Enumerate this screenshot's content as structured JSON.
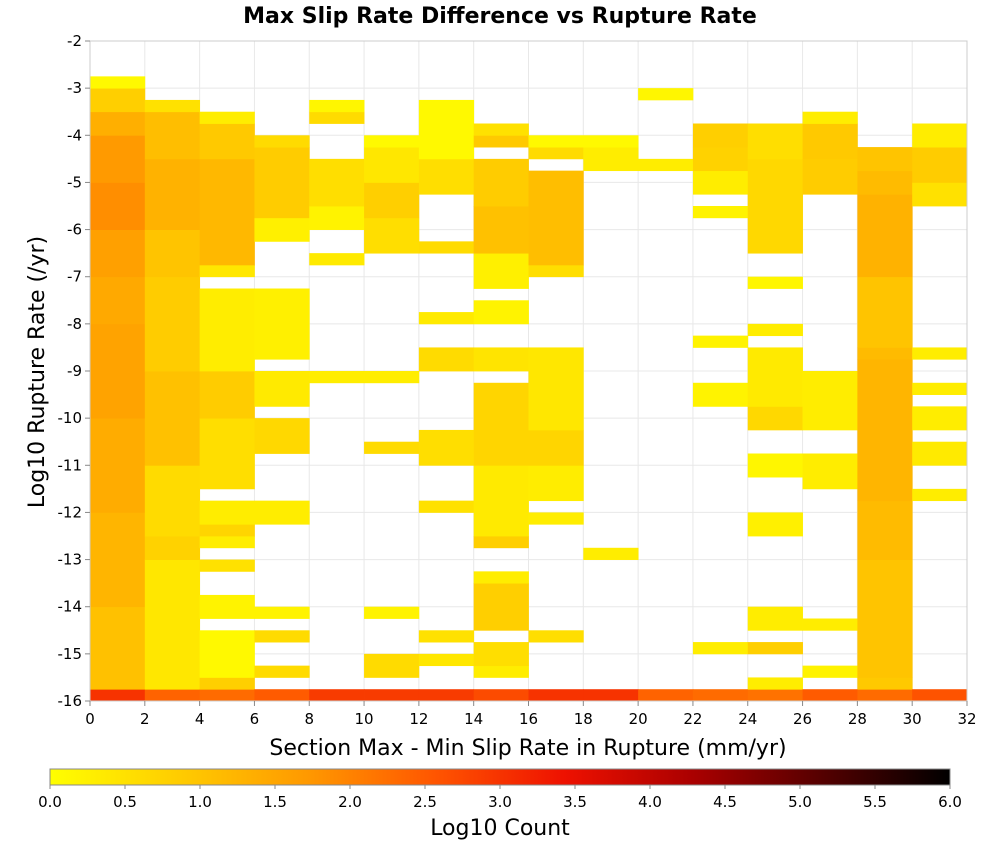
{
  "chart_data": {
    "type": "heatmap",
    "title": "Max Slip Rate Difference vs Rupture Rate",
    "xlabel": "Section Max - Min Slip Rate in Rupture (mm/yr)",
    "ylabel": "Log10 Rupture Rate (/yr)",
    "x_range": [
      0,
      32
    ],
    "y_range": [
      -16,
      -2
    ],
    "x_ticks": [
      0,
      2,
      4,
      6,
      8,
      10,
      12,
      14,
      16,
      18,
      20,
      22,
      24,
      26,
      28,
      30,
      32
    ],
    "y_ticks": [
      -16,
      -15,
      -14,
      -13,
      -12,
      -11,
      -10,
      -9,
      -8,
      -7,
      -6,
      -5,
      -4,
      -3,
      -2
    ],
    "x_bin_width": 2,
    "y_bin_width": 0.25,
    "grid": true,
    "colorbar": {
      "label": "Log10 Count",
      "range": [
        0,
        6
      ],
      "ticks": [
        "0.0",
        "0.5",
        "1.0",
        "1.5",
        "2.0",
        "2.5",
        "3.0",
        "3.5",
        "4.0",
        "4.5",
        "5.0",
        "5.5",
        "6.0"
      ],
      "colors": [
        "#FFFF00",
        "#FFCC00",
        "#FF9900",
        "#FF5500",
        "#EE1100",
        "#AA0000",
        "#550000",
        "#000000"
      ],
      "placement": "bottom"
    },
    "columns": [
      {
        "x_start": 0,
        "cells": [
          [
            -16,
            -15.75,
            3.0
          ],
          [
            -15.75,
            -14,
            1.05
          ],
          [
            -14,
            -12,
            1.25
          ],
          [
            -12,
            -10,
            1.4
          ],
          [
            -10,
            -8,
            1.55
          ],
          [
            -8,
            -7,
            1.45
          ],
          [
            -7,
            -6,
            1.6
          ],
          [
            -6,
            -5,
            1.85
          ],
          [
            -5,
            -4,
            1.7
          ],
          [
            -4,
            -3.5,
            1.35
          ],
          [
            -3.5,
            -3,
            0.8
          ],
          [
            -3,
            -2.75,
            0.1
          ]
        ]
      },
      {
        "x_start": 2,
        "cells": [
          [
            -16,
            -15.75,
            2.4
          ],
          [
            -15.75,
            -13,
            0.4
          ],
          [
            -13,
            -12.5,
            0.75
          ],
          [
            -12.5,
            -11,
            0.6
          ],
          [
            -11,
            -9,
            1.05
          ],
          [
            -9,
            -7,
            0.85
          ],
          [
            -7,
            -6,
            1.0
          ],
          [
            -6,
            -4.5,
            1.3
          ],
          [
            -4.5,
            -3.5,
            1.1
          ],
          [
            -3.5,
            -3.25,
            0.5
          ]
        ]
      },
      {
        "x_start": 4,
        "cells": [
          [
            -16,
            -15.75,
            2.3
          ],
          [
            -15.75,
            -15.5,
            0.8
          ],
          [
            -15.5,
            -14.5,
            0.1
          ],
          [
            -14.25,
            -13.75,
            0.2
          ],
          [
            -13.25,
            -13,
            0.5
          ],
          [
            -12.75,
            -12.5,
            0.3
          ],
          [
            -12.5,
            -12.25,
            0.7
          ],
          [
            -12.25,
            -11.75,
            0.3
          ],
          [
            -11.5,
            -10,
            0.55
          ],
          [
            -10,
            -9,
            0.85
          ],
          [
            -9,
            -7.25,
            0.3
          ],
          [
            -7,
            -6.75,
            0.4
          ],
          [
            -6.75,
            -4.5,
            1.2
          ],
          [
            -4.5,
            -3.75,
            0.9
          ],
          [
            -3.75,
            -3.5,
            0.3
          ]
        ]
      },
      {
        "x_start": 6,
        "cells": [
          [
            -16,
            -15.75,
            2.5
          ],
          [
            -15.5,
            -15.25,
            0.6
          ],
          [
            -14.75,
            -14.5,
            0.6
          ],
          [
            -14.25,
            -14,
            0.2
          ],
          [
            -12.25,
            -11.75,
            0.3
          ],
          [
            -10.75,
            -10,
            0.65
          ],
          [
            -9.75,
            -9,
            0.35
          ],
          [
            -8.75,
            -7.25,
            0.25
          ],
          [
            -6.25,
            -5.75,
            0.25
          ],
          [
            -5.75,
            -4.25,
            0.85
          ],
          [
            -4.25,
            -4,
            0.6
          ]
        ]
      },
      {
        "x_start": 8,
        "cells": [
          [
            -16,
            -15.75,
            2.9
          ],
          [
            -9.25,
            -9,
            0.3
          ],
          [
            -6.75,
            -6.5,
            0.35
          ],
          [
            -6,
            -5.5,
            0.2
          ],
          [
            -5.5,
            -4.5,
            0.55
          ],
          [
            -3.75,
            -3.5,
            0.6
          ],
          [
            -3.5,
            -3.25,
            0.15
          ]
        ]
      },
      {
        "x_start": 10,
        "cells": [
          [
            -16,
            -15.75,
            2.9
          ],
          [
            -15.5,
            -15,
            0.6
          ],
          [
            -14.25,
            -14,
            0.2
          ],
          [
            -10.75,
            -10.5,
            0.6
          ],
          [
            -9.25,
            -9,
            0.3
          ],
          [
            -6.5,
            -5.75,
            0.55
          ],
          [
            -5.75,
            -5,
            0.8
          ],
          [
            -5,
            -4.25,
            0.4
          ],
          [
            -4.25,
            -4,
            0.1
          ]
        ]
      },
      {
        "x_start": 12,
        "cells": [
          [
            -16,
            -15.75,
            2.9
          ],
          [
            -15.25,
            -15,
            0.4
          ],
          [
            -14.75,
            -14.5,
            0.5
          ],
          [
            -12,
            -11.75,
            0.5
          ],
          [
            -11,
            -10.25,
            0.55
          ],
          [
            -9,
            -8.5,
            0.6
          ],
          [
            -8,
            -7.75,
            0.35
          ],
          [
            -6.5,
            -6.25,
            0.6
          ],
          [
            -5.25,
            -4.5,
            0.55
          ],
          [
            -4.5,
            -3.25,
            0.1
          ]
        ]
      },
      {
        "x_start": 14,
        "cells": [
          [
            -16,
            -15.75,
            2.7
          ],
          [
            -15.5,
            -15.25,
            0.3
          ],
          [
            -15.25,
            -14.75,
            0.55
          ],
          [
            -14.5,
            -13.5,
            0.8
          ],
          [
            -13.5,
            -13.25,
            0.3
          ],
          [
            -12.75,
            -12.5,
            0.8
          ],
          [
            -12.5,
            -11,
            0.35
          ],
          [
            -11,
            -9.25,
            0.7
          ],
          [
            -9,
            -8.5,
            0.45
          ],
          [
            -8,
            -7.5,
            0.2
          ],
          [
            -7.25,
            -6.5,
            0.25
          ],
          [
            -6.5,
            -5.5,
            1.05
          ],
          [
            -5.5,
            -4.5,
            0.85
          ],
          [
            -4.25,
            -4,
            0.9
          ],
          [
            -4,
            -3.75,
            0.5
          ]
        ]
      },
      {
        "x_start": 16,
        "cells": [
          [
            -16,
            -15.75,
            3.0
          ],
          [
            -14.75,
            -14.5,
            0.55
          ],
          [
            -12.25,
            -12,
            0.3
          ],
          [
            -11.75,
            -11,
            0.3
          ],
          [
            -11,
            -10.25,
            0.7
          ],
          [
            -10.25,
            -8.5,
            0.4
          ],
          [
            -7,
            -6.75,
            0.55
          ],
          [
            -6.75,
            -4.75,
            1.1
          ],
          [
            -4.5,
            -4.25,
            0.6
          ],
          [
            -4.25,
            -4,
            0.1
          ]
        ]
      },
      {
        "x_start": 18,
        "cells": [
          [
            -16,
            -15.75,
            3.0
          ],
          [
            -13,
            -12.75,
            0.3
          ],
          [
            -4.75,
            -4.25,
            0.3
          ],
          [
            -4.25,
            -4,
            0.1
          ]
        ]
      },
      {
        "x_start": 20,
        "cells": [
          [
            -16,
            -15.75,
            2.4
          ],
          [
            -4.75,
            -4.5,
            0.3
          ],
          [
            -3.25,
            -3,
            0.15
          ]
        ]
      },
      {
        "x_start": 22,
        "cells": [
          [
            -16,
            -15.75,
            2.3
          ],
          [
            -15,
            -14.75,
            0.3
          ],
          [
            -9.75,
            -9.25,
            0.2
          ],
          [
            -8.5,
            -8.25,
            0.2
          ],
          [
            -5.75,
            -5.5,
            0.2
          ],
          [
            -5.25,
            -4.75,
            0.3
          ],
          [
            -4.75,
            -4.25,
            0.75
          ],
          [
            -4.25,
            -3.75,
            0.8
          ]
        ]
      },
      {
        "x_start": 24,
        "cells": [
          [
            -16,
            -15.75,
            2.2
          ],
          [
            -15.75,
            -15.5,
            0.3
          ],
          [
            -15,
            -14.75,
            0.8
          ],
          [
            -14.5,
            -14,
            0.3
          ],
          [
            -12.5,
            -12,
            0.25
          ],
          [
            -11.25,
            -10.75,
            0.15
          ],
          [
            -10.25,
            -9.75,
            0.65
          ],
          [
            -9.75,
            -8.5,
            0.35
          ],
          [
            -8.25,
            -8,
            0.3
          ],
          [
            -7.25,
            -7,
            0.15
          ],
          [
            -6.5,
            -4.5,
            0.65
          ],
          [
            -4.5,
            -3.75,
            0.55
          ]
        ]
      },
      {
        "x_start": 26,
        "cells": [
          [
            -16,
            -15.75,
            2.5
          ],
          [
            -15.5,
            -15.25,
            0.2
          ],
          [
            -14.5,
            -14.25,
            0.3
          ],
          [
            -11.5,
            -10.75,
            0.3
          ],
          [
            -10.25,
            -9,
            0.3
          ],
          [
            -5.25,
            -4.5,
            0.85
          ],
          [
            -4.5,
            -3.75,
            0.9
          ],
          [
            -3.75,
            -3.5,
            0.3
          ]
        ]
      },
      {
        "x_start": 28,
        "cells": [
          [
            -16,
            -15.75,
            2.3
          ],
          [
            -15.75,
            -15.5,
            0.9
          ],
          [
            -15.5,
            -13,
            1.0
          ],
          [
            -13,
            -11.75,
            1.15
          ],
          [
            -11.75,
            -8.75,
            1.25
          ],
          [
            -8.75,
            -8.5,
            1.15
          ],
          [
            -8.5,
            -7,
            1.0
          ],
          [
            -7,
            -5.25,
            1.3
          ],
          [
            -5.25,
            -4.75,
            1.15
          ],
          [
            -4.75,
            -4.25,
            1.0
          ]
        ]
      },
      {
        "x_start": 30,
        "cells": [
          [
            -16,
            -15.75,
            2.6
          ],
          [
            -11.75,
            -11.5,
            0.3
          ],
          [
            -11,
            -10.5,
            0.35
          ],
          [
            -10.25,
            -9.75,
            0.3
          ],
          [
            -9.5,
            -9.25,
            0.3
          ],
          [
            -8.75,
            -8.5,
            0.3
          ],
          [
            -5.5,
            -5,
            0.5
          ],
          [
            -5,
            -4.25,
            0.85
          ],
          [
            -4.25,
            -3.75,
            0.3
          ]
        ]
      },
      {
        "x_start": 32,
        "cells": []
      }
    ]
  }
}
